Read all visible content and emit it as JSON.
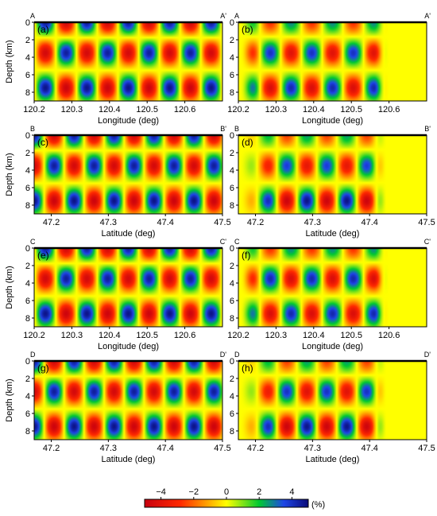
{
  "chart_data": {
    "type": "heatmap",
    "ylabel": "Depth (km)",
    "colorbar": {
      "unit": "(%)",
      "range": [
        -5,
        5
      ],
      "ticks": [
        -4,
        -2,
        0,
        2,
        4
      ],
      "tick_labels": [
        "−4",
        "−2",
        "0",
        "2",
        "4"
      ],
      "colors": [
        "#c8000f",
        "#ff2a00",
        "#ffa000",
        "#ffff00",
        "#00c832",
        "#1e46e6",
        "#0a0a78"
      ],
      "color_stops": [
        0,
        0.22,
        0.38,
        0.5,
        0.7,
        0.85,
        1
      ]
    },
    "depth_axis": {
      "range": [
        0,
        9
      ],
      "ticks": [
        0,
        2,
        4,
        6,
        8
      ],
      "tick_labels": [
        "0",
        "2",
        "4",
        "6",
        "8"
      ]
    },
    "pattern": {
      "rows_depth_km": [
        0,
        3.5,
        7.5
      ],
      "lon_period_deg": 0.11,
      "lat_period_deg": 0.07,
      "amplitude_pct": 5
    },
    "panels": [
      {
        "id": "a",
        "label": "(a)",
        "profile_start": "A",
        "profile_end": "A'",
        "xlabel": "Longitude (deg)",
        "xlim": [
          120.2,
          120.7
        ],
        "xticks": [
          120.2,
          120.3,
          120.4,
          120.5,
          120.6
        ],
        "xtick_labels": [
          "120.2",
          "120.3",
          "120.4",
          "120.5",
          "120.6"
        ],
        "field": "input",
        "pattern_start": 120.23,
        "pattern_end": 120.7,
        "fade_end": 120.7,
        "row_amplitudes": [
          0.9,
          0.9,
          0.95
        ]
      },
      {
        "id": "b",
        "label": "(b)",
        "profile_start": "A",
        "profile_end": "A'",
        "xlabel": "Longitude (deg)",
        "xlim": [
          120.2,
          120.7
        ],
        "xticks": [
          120.2,
          120.3,
          120.4,
          120.5,
          120.6
        ],
        "xtick_labels": [
          "120.2",
          "120.3",
          "120.4",
          "120.5",
          "120.6"
        ],
        "field": "recovered",
        "pattern_start": 120.23,
        "pattern_end": 120.56,
        "fade_end": 120.6,
        "row_amplitudes": [
          0.55,
          0.8,
          0.85
        ]
      },
      {
        "id": "c",
        "label": "(c)",
        "profile_start": "B",
        "profile_end": "B'",
        "xlabel": "Latitude (deg)",
        "xlim": [
          47.17,
          47.5
        ],
        "xticks": [
          47.2,
          47.3,
          47.4,
          47.5
        ],
        "xtick_labels": [
          "47.2",
          "47.3",
          "47.4",
          "47.5"
        ],
        "field": "input",
        "pattern_start": 47.17,
        "pattern_end": 47.5,
        "fade_end": 47.5,
        "row_amplitudes": [
          0.9,
          0.9,
          0.95
        ]
      },
      {
        "id": "d",
        "label": "(d)",
        "profile_start": "B",
        "profile_end": "B'",
        "xlabel": "Latitude (deg)",
        "xlim": [
          47.17,
          47.5
        ],
        "xticks": [
          47.2,
          47.3,
          47.4,
          47.5
        ],
        "xtick_labels": [
          "47.2",
          "47.3",
          "47.4",
          "47.5"
        ],
        "field": "recovered",
        "pattern_start": 47.22,
        "pattern_end": 47.4,
        "fade_end": 47.43,
        "row_amplitudes": [
          0.5,
          0.75,
          0.95
        ]
      },
      {
        "id": "e",
        "label": "(e)",
        "profile_start": "C",
        "profile_end": "C'",
        "xlabel": "Longitude (deg)",
        "xlim": [
          120.2,
          120.7
        ],
        "xticks": [
          120.2,
          120.3,
          120.4,
          120.5,
          120.6
        ],
        "xtick_labels": [
          "120.2",
          "120.3",
          "120.4",
          "120.5",
          "120.6"
        ],
        "field": "input",
        "pattern_start": 120.23,
        "pattern_end": 120.7,
        "fade_end": 120.7,
        "row_amplitudes": [
          0.9,
          0.9,
          0.95
        ]
      },
      {
        "id": "f",
        "label": "(f)",
        "profile_start": "C",
        "profile_end": "C'",
        "xlabel": "Longitude (deg)",
        "xlim": [
          120.2,
          120.7
        ],
        "xticks": [
          120.2,
          120.3,
          120.4,
          120.5,
          120.6
        ],
        "xtick_labels": [
          "120.2",
          "120.3",
          "120.4",
          "120.5",
          "120.6"
        ],
        "field": "recovered",
        "pattern_start": 120.23,
        "pattern_end": 120.56,
        "fade_end": 120.6,
        "row_amplitudes": [
          0.55,
          0.85,
          0.85
        ]
      },
      {
        "id": "g",
        "label": "(g)",
        "profile_start": "D",
        "profile_end": "D'",
        "xlabel": "Latitude (deg)",
        "xlim": [
          47.17,
          47.5
        ],
        "xticks": [
          47.2,
          47.3,
          47.4,
          47.5
        ],
        "xtick_labels": [
          "47.2",
          "47.3",
          "47.4",
          "47.5"
        ],
        "field": "input",
        "pattern_start": 47.17,
        "pattern_end": 47.5,
        "fade_end": 47.5,
        "row_amplitudes": [
          0.9,
          0.9,
          0.95
        ]
      },
      {
        "id": "h",
        "label": "(h)",
        "profile_start": "D",
        "profile_end": "D'",
        "xlabel": "Latitude (deg)",
        "xlim": [
          47.17,
          47.5
        ],
        "xticks": [
          47.2,
          47.3,
          47.4,
          47.5
        ],
        "xtick_labels": [
          "47.2",
          "47.3",
          "47.4",
          "47.5"
        ],
        "field": "recovered",
        "pattern_start": 47.22,
        "pattern_end": 47.4,
        "fade_end": 47.43,
        "row_amplitudes": [
          0.5,
          0.8,
          0.95
        ]
      }
    ]
  }
}
